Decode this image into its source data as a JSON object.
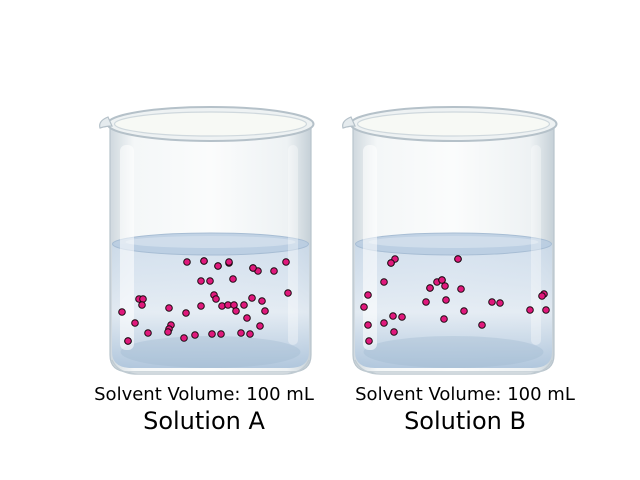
{
  "colors": {
    "particle_fill": "#e0197c",
    "particle_stroke": "#1a0a10",
    "liquid_top": "#c9d9ea",
    "liquid_bottom": "#aec5dc",
    "glass": "#e6ecf0"
  },
  "beakers": [
    {
      "id": "A",
      "volume_label": "Solvent Volume: 100 mL",
      "name": "Solution A",
      "particle_count": 48
    },
    {
      "id": "B",
      "volume_label": "Solvent Volume: 100 mL",
      "name": "Solution B",
      "particle_count": 32
    }
  ]
}
